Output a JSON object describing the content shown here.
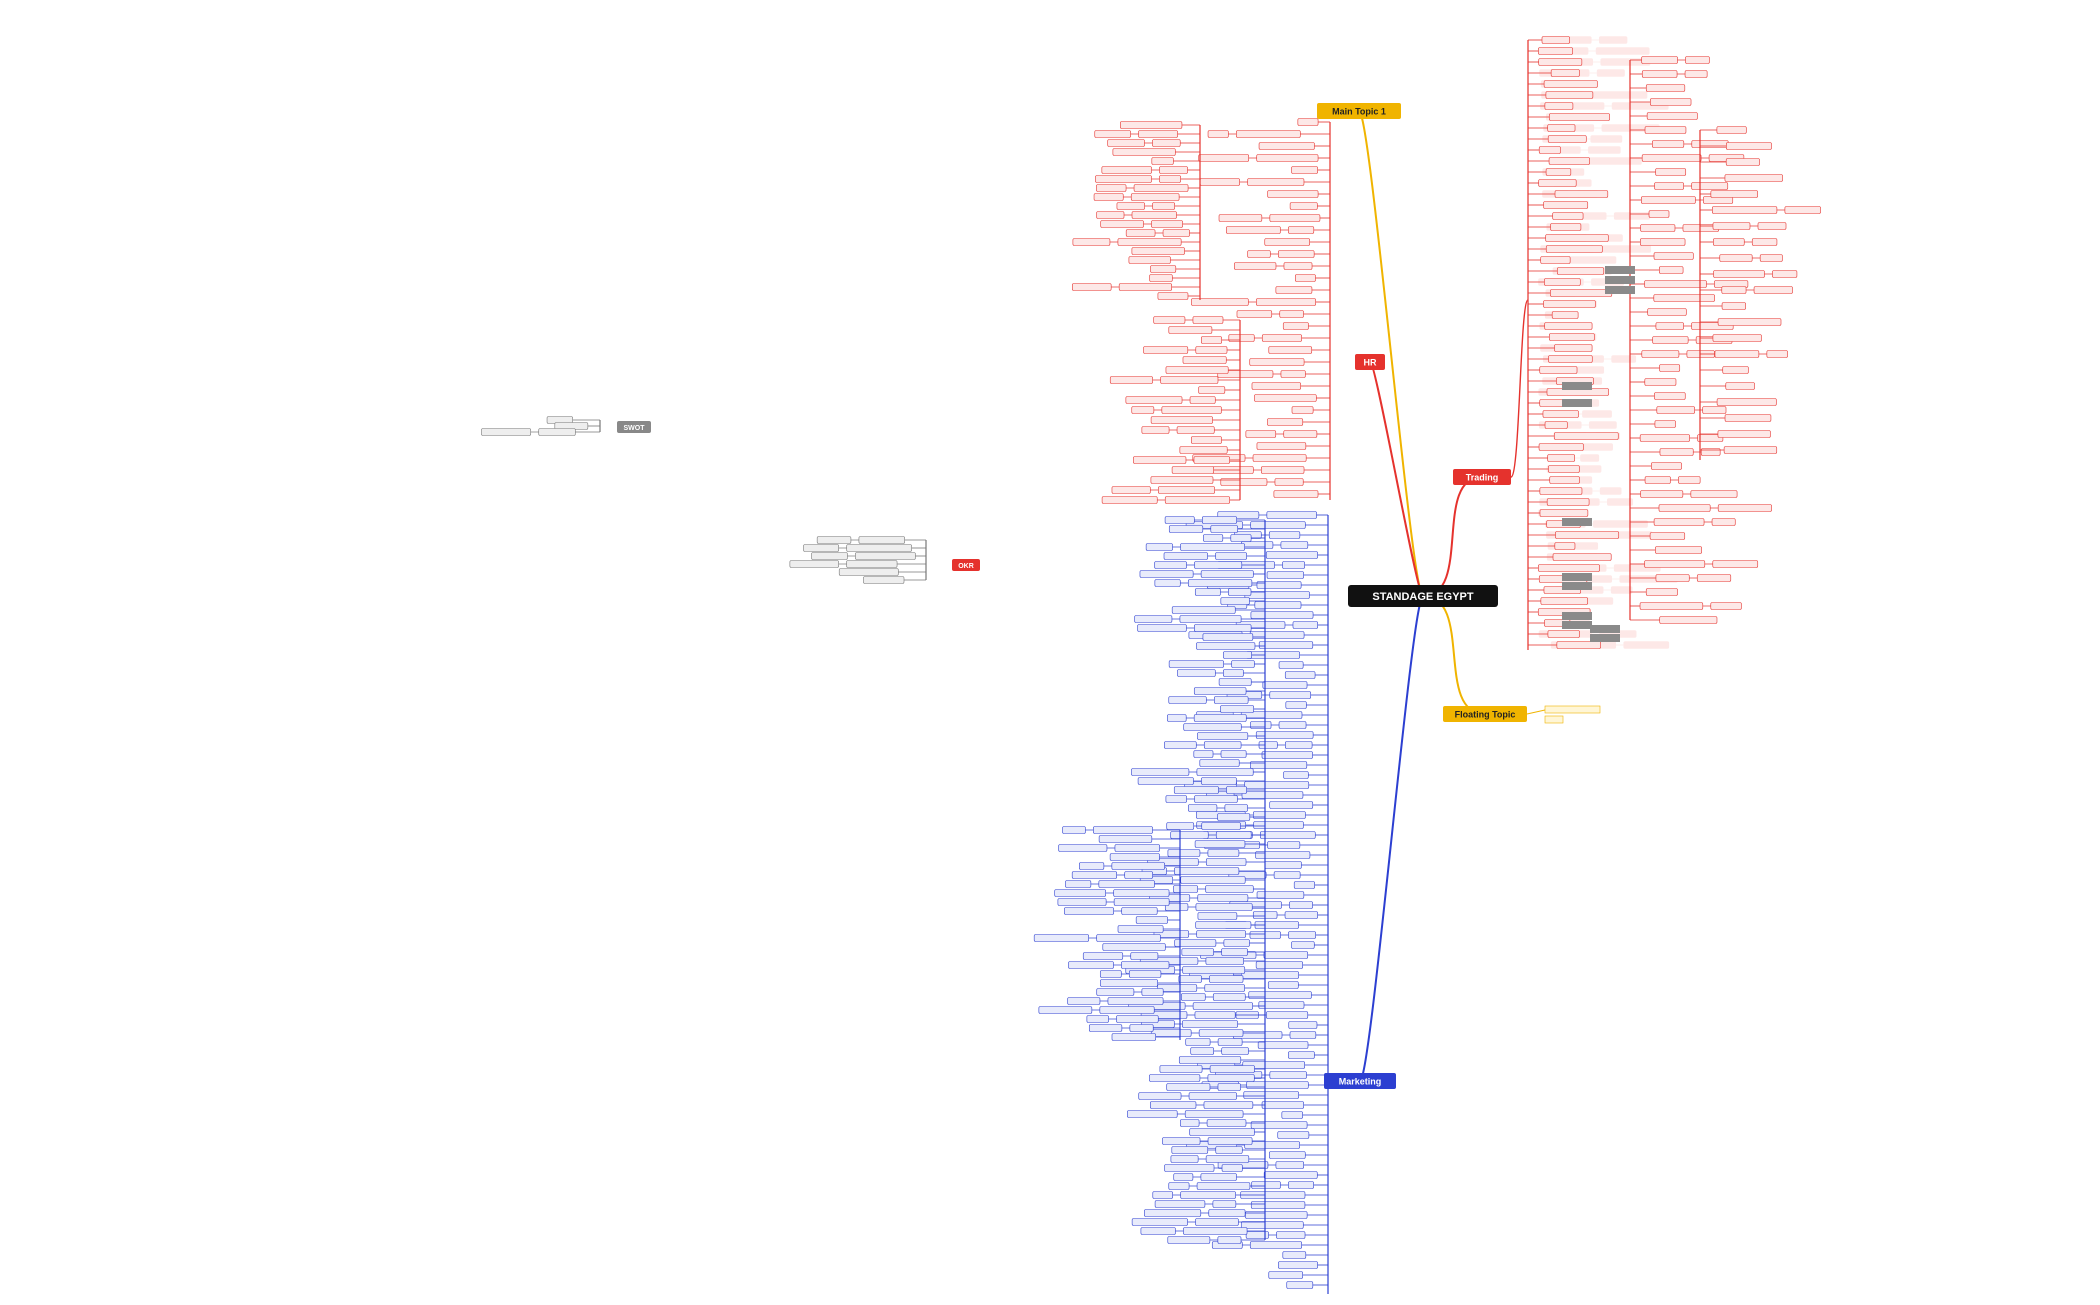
{
  "central": {
    "label": "STANDAGE EGYPT"
  },
  "topics": [
    {
      "label": "Main Topic 1"
    },
    {
      "label": "HR"
    },
    {
      "label": "Trading"
    },
    {
      "label": "Floating Topic"
    },
    {
      "label": "Marketing"
    }
  ],
  "floating": [
    {
      "label": "OKR"
    },
    {
      "label": "SWOT"
    }
  ]
}
